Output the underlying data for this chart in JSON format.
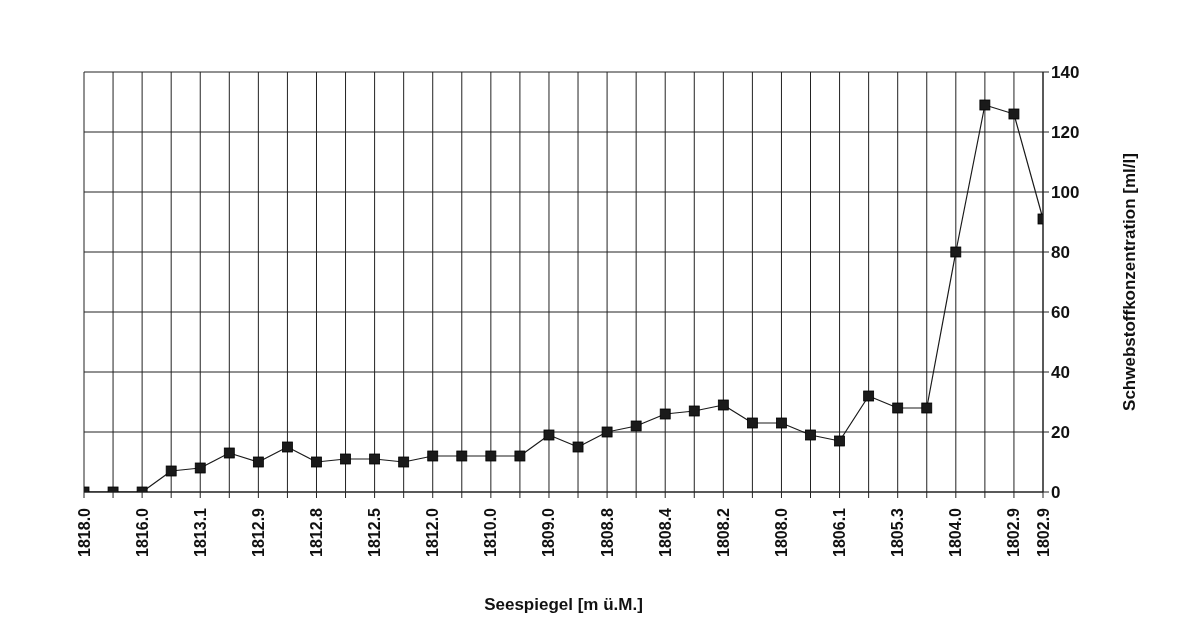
{
  "chart_data": {
    "type": "line",
    "xlabel": "Seespiegel  [m ü.M.]",
    "ylabel": "Schwebstoffkonzentration  [ml/l]",
    "categories": [
      "1818.0",
      null,
      "1816.0",
      null,
      "1813.1",
      null,
      "1812.9",
      null,
      "1812.8",
      null,
      "1812.5",
      null,
      "1812.0",
      null,
      "1810.0",
      null,
      "1809.0",
      null,
      "1808.8",
      null,
      "1808.4",
      null,
      "1808.2",
      null,
      "1808.0",
      null,
      "1806.1",
      null,
      "1805.3",
      null,
      "1804.0",
      null,
      "1802.9",
      "1802.9"
    ],
    "series": [
      {
        "color": "#1a1a1a",
        "values": [
          0,
          0,
          0,
          7,
          8,
          13,
          10,
          15,
          10,
          11,
          11,
          10,
          12,
          12,
          12,
          12,
          19,
          15,
          20,
          22,
          26,
          27,
          29,
          23,
          23,
          19,
          17,
          32,
          28,
          28,
          80,
          129,
          126,
          91
        ]
      }
    ],
    "ylim": [
      0,
      140
    ],
    "yticks": [
      0,
      20,
      40,
      60,
      80,
      100,
      120,
      140
    ],
    "grid": true,
    "legend": false,
    "marker": "square",
    "line_style": "solid"
  }
}
